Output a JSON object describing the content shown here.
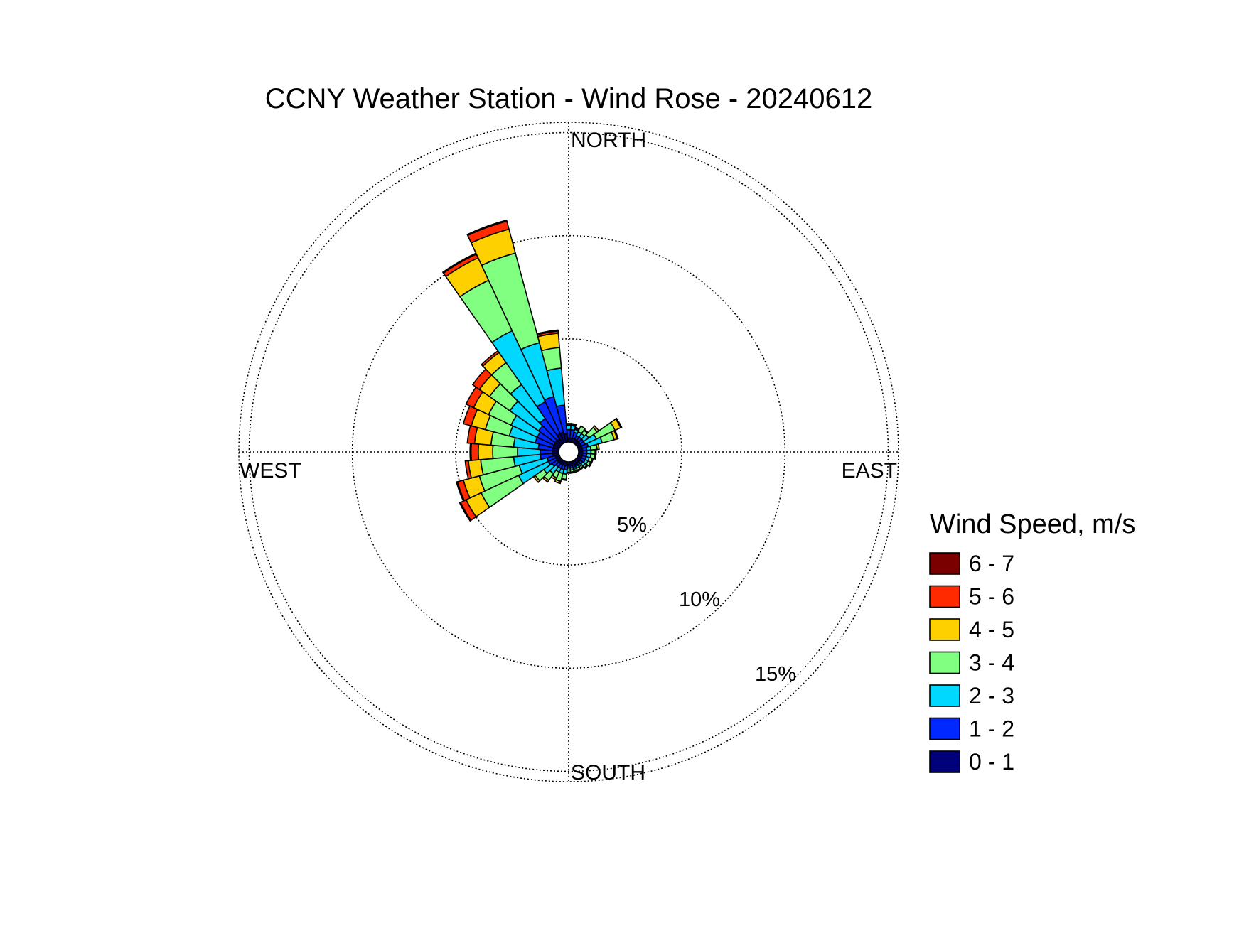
{
  "chart_data": {
    "type": "windrose",
    "title": "CCNY Weather Station - Wind Rose - 20240612",
    "compass": {
      "north": "NORTH",
      "east": "EAST",
      "south": "SOUTH",
      "west": "WEST"
    },
    "radial_unit": "%",
    "radial_ticks": [
      5,
      10,
      15
    ],
    "radial_tick_labels": [
      "5%",
      "10%",
      "15%"
    ],
    "rmax": 15.5,
    "grid": true,
    "legend": {
      "title": "Wind Speed, m/s",
      "placement": "right",
      "entries": [
        {
          "label": "6 - 7",
          "color": "#7a0000"
        },
        {
          "label": "5 - 6",
          "color": "#ff2a00"
        },
        {
          "label": "4 - 5",
          "color": "#ffd000"
        },
        {
          "label": "3 - 4",
          "color": "#80ff80"
        },
        {
          "label": "2 - 3",
          "color": "#00d8ff"
        },
        {
          "label": "1 - 2",
          "color": "#0028ff"
        },
        {
          "label": "0 - 1",
          "color": "#00007a"
        }
      ]
    },
    "bins": [
      "0 - 1",
      "1 - 2",
      "2 - 3",
      "3 - 4",
      "4 - 5",
      "5 - 6",
      "6 - 7"
    ],
    "bin_colors": [
      "#00007a",
      "#0028ff",
      "#00d8ff",
      "#80ff80",
      "#ffd000",
      "#ff2a00",
      "#7a0000"
    ],
    "sector_width_deg": 10,
    "sectors": [
      {
        "dir": 0,
        "cum": [
          0.2,
          0.6,
          0.8,
          0.85,
          0.9,
          0.9,
          0.9
        ]
      },
      {
        "dir": 10,
        "cum": [
          0.2,
          0.6,
          0.8,
          0.85,
          0.9,
          0.9,
          0.9
        ]
      },
      {
        "dir": 20,
        "cum": [
          0.2,
          0.5,
          0.65,
          0.7,
          0.75,
          0.75,
          0.75
        ]
      },
      {
        "dir": 30,
        "cum": [
          0.2,
          0.4,
          0.6,
          0.9,
          0.9,
          0.9,
          0.9
        ]
      },
      {
        "dir": 40,
        "cum": [
          0.2,
          0.4,
          0.6,
          0.8,
          0.85,
          0.85,
          0.85
        ]
      },
      {
        "dir": 50,
        "cum": [
          0.2,
          0.4,
          0.7,
          1.2,
          1.3,
          1.3,
          1.3
        ]
      },
      {
        "dir": 60,
        "cum": [
          0.2,
          0.4,
          1.0,
          2.0,
          2.3,
          2.35,
          2.35
        ]
      },
      {
        "dir": 70,
        "cum": [
          0.2,
          0.5,
          1.2,
          1.8,
          1.95,
          2.0,
          2.0
        ]
      },
      {
        "dir": 80,
        "cum": [
          0.2,
          0.4,
          0.6,
          0.9,
          1.0,
          1.0,
          1.0
        ]
      },
      {
        "dir": 90,
        "cum": [
          0.2,
          0.4,
          0.6,
          0.8,
          0.85,
          0.85,
          0.85
        ]
      },
      {
        "dir": 100,
        "cum": [
          0.2,
          0.4,
          0.6,
          0.8,
          0.85,
          0.85,
          0.85
        ]
      },
      {
        "dir": 110,
        "cum": [
          0.2,
          0.4,
          0.55,
          0.7,
          0.75,
          0.75,
          0.75
        ]
      },
      {
        "dir": 120,
        "cum": [
          0.2,
          0.4,
          0.55,
          0.7,
          0.75,
          0.75,
          0.75
        ]
      },
      {
        "dir": 130,
        "cum": [
          0.2,
          0.35,
          0.5,
          0.6,
          0.65,
          0.65,
          0.65
        ]
      },
      {
        "dir": 140,
        "cum": [
          0.2,
          0.3,
          0.4,
          0.5,
          0.55,
          0.55,
          0.55
        ]
      },
      {
        "dir": 150,
        "cum": [
          0.2,
          0.3,
          0.4,
          0.5,
          0.55,
          0.55,
          0.55
        ]
      },
      {
        "dir": 160,
        "cum": [
          0.2,
          0.3,
          0.4,
          0.5,
          0.55,
          0.55,
          0.55
        ]
      },
      {
        "dir": 170,
        "cum": [
          0.2,
          0.3,
          0.4,
          0.5,
          0.55,
          0.55,
          0.55
        ]
      },
      {
        "dir": 180,
        "cum": [
          0.2,
          0.3,
          0.4,
          0.5,
          0.55,
          0.55,
          0.55
        ]
      },
      {
        "dir": 190,
        "cum": [
          0.2,
          0.4,
          0.6,
          0.85,
          0.9,
          0.9,
          0.9
        ]
      },
      {
        "dir": 200,
        "cum": [
          0.2,
          0.4,
          0.6,
          1.0,
          1.1,
          1.1,
          1.1
        ]
      },
      {
        "dir": 210,
        "cum": [
          0.2,
          0.4,
          0.6,
          0.9,
          1.0,
          1.0,
          1.0
        ]
      },
      {
        "dir": 220,
        "cum": [
          0.2,
          0.4,
          0.8,
          1.2,
          1.3,
          1.3,
          1.3
        ]
      },
      {
        "dir": 230,
        "cum": [
          0.2,
          0.5,
          1.0,
          1.5,
          1.6,
          1.6,
          1.6
        ]
      },
      {
        "dir": 240,
        "cum": [
          0.2,
          0.6,
          2.2,
          4.2,
          5.0,
          5.3,
          5.35
        ]
      },
      {
        "dir": 250,
        "cum": [
          0.2,
          0.6,
          2.0,
          4.0,
          4.8,
          5.1,
          5.15
        ]
      },
      {
        "dir": 260,
        "cum": [
          0.3,
          0.9,
          2.2,
          3.8,
          4.4,
          4.55,
          4.55
        ]
      },
      {
        "dir": 270,
        "cum": [
          0.3,
          0.9,
          2.0,
          3.2,
          3.9,
          4.25,
          4.3
        ]
      },
      {
        "dir": 280,
        "cum": [
          0.3,
          1.0,
          2.2,
          3.3,
          4.1,
          4.45,
          4.45
        ]
      },
      {
        "dir": 290,
        "cum": [
          0.3,
          1.2,
          2.5,
          3.7,
          4.4,
          4.8,
          4.8
        ]
      },
      {
        "dir": 300,
        "cum": [
          0.3,
          1.2,
          2.6,
          3.8,
          4.6,
          5.0,
          5.0
        ]
      },
      {
        "dir": 310,
        "cum": [
          0.3,
          1.3,
          3.0,
          4.2,
          4.8,
          5.2,
          5.2
        ]
      },
      {
        "dir": 320,
        "cum": [
          0.3,
          1.5,
          3.5,
          4.8,
          5.4,
          5.5,
          5.5
        ]
      },
      {
        "dir": 330,
        "cum": [
          0.5,
          2.2,
          6.0,
          8.7,
          9.9,
          10.1,
          10.15
        ]
      },
      {
        "dir": 340,
        "cum": [
          0.5,
          2.3,
          5.0,
          9.5,
          10.7,
          11.1,
          11.15
        ]
      },
      {
        "dir": 350,
        "cum": [
          0.4,
          1.8,
          3.6,
          4.6,
          5.3,
          5.4,
          5.45
        ]
      }
    ]
  }
}
